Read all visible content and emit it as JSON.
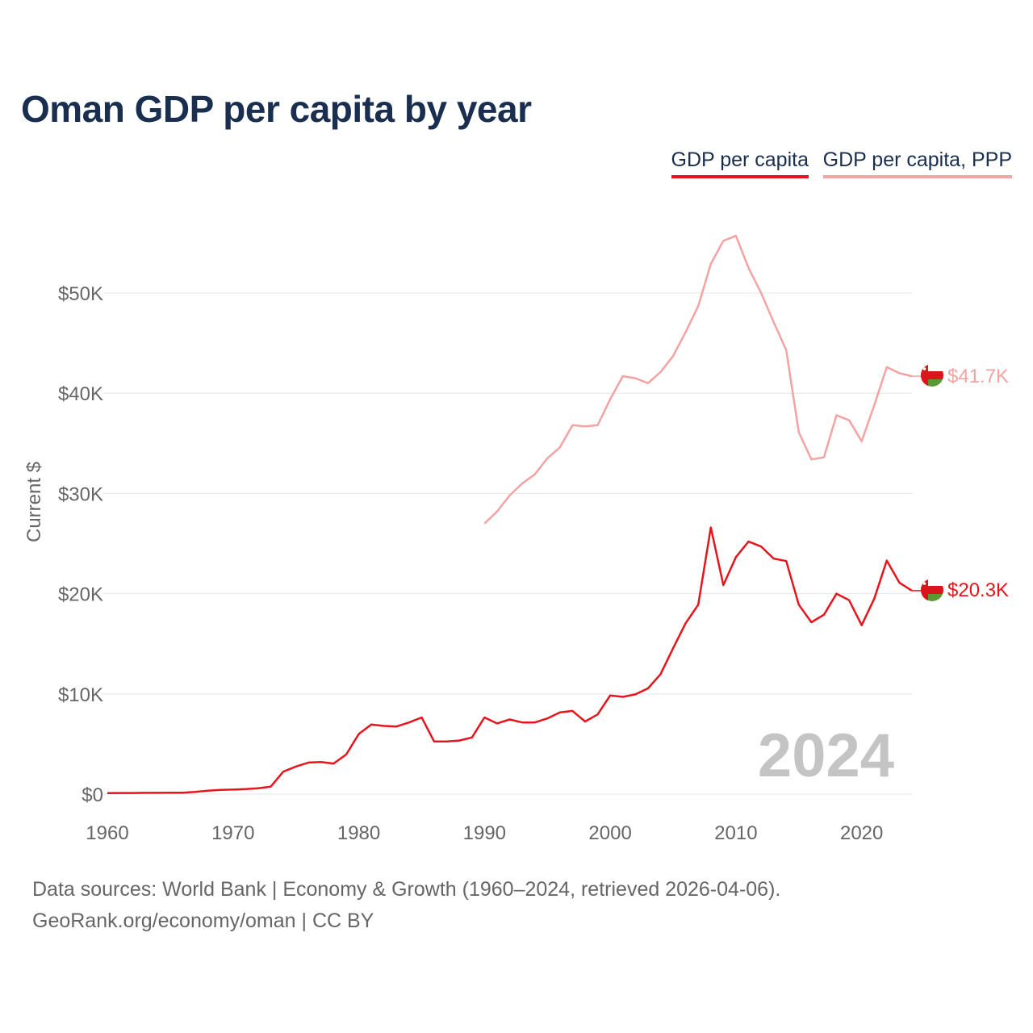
{
  "title": "Oman GDP per capita by year",
  "legend": {
    "gdp": "GDP per capita",
    "ppp": "GDP per capita, PPP"
  },
  "colors": {
    "gdp": "#e8141c",
    "ppp": "#f4a2a2",
    "grid": "#e6e6e6",
    "year_label": "#c4c4c4"
  },
  "year_label": "2024",
  "footer": {
    "source": "Data sources: World Bank | Economy & Growth (1960–2024, retrieved 2026-04-06).",
    "credit": "GeoRank.org/economy/oman | CC BY"
  },
  "end_labels": {
    "gdp": "$20.3K",
    "ppp": "$41.7K"
  },
  "chart_data": {
    "type": "line",
    "title": "Oman GDP per capita by year",
    "xlabel": "",
    "ylabel": "Current $",
    "xlim": [
      1960,
      2024
    ],
    "ylim": [
      0,
      55000
    ],
    "x_ticks": [
      1960,
      1970,
      1980,
      1990,
      2000,
      2010,
      2020
    ],
    "y_ticks": [
      {
        "value": 0,
        "label": "$0"
      },
      {
        "value": 10000,
        "label": "$10K"
      },
      {
        "value": 20000,
        "label": "$20K"
      },
      {
        "value": 30000,
        "label": "$30K"
      },
      {
        "value": 40000,
        "label": "$40K"
      },
      {
        "value": 50000,
        "label": "$50K"
      }
    ],
    "series": [
      {
        "name": "GDP per capita",
        "x": [
          1960,
          1961,
          1962,
          1963,
          1964,
          1965,
          1966,
          1967,
          1968,
          1969,
          1970,
          1971,
          1972,
          1973,
          1974,
          1975,
          1976,
          1977,
          1978,
          1979,
          1980,
          1981,
          1982,
          1983,
          1984,
          1985,
          1986,
          1987,
          1988,
          1989,
          1990,
          1991,
          1992,
          1993,
          1994,
          1995,
          1996,
          1997,
          1998,
          1999,
          2000,
          2001,
          2002,
          2003,
          2004,
          2005,
          2006,
          2007,
          2008,
          2009,
          2010,
          2011,
          2012,
          2013,
          2014,
          2015,
          2016,
          2017,
          2018,
          2019,
          2020,
          2021,
          2022,
          2023,
          2024
        ],
        "values": [
          100,
          110,
          115,
          125,
          130,
          135,
          140,
          220,
          350,
          420,
          450,
          500,
          580,
          750,
          2250,
          2750,
          3150,
          3200,
          3050,
          3950,
          6000,
          6950,
          6800,
          6750,
          7150,
          7650,
          5250,
          5250,
          5350,
          5650,
          7650,
          7050,
          7450,
          7150,
          7150,
          7550,
          8150,
          8300,
          7250,
          7950,
          9850,
          9700,
          9950,
          10550,
          11950,
          14550,
          17050,
          18900,
          26600,
          20850,
          23650,
          25200,
          24700,
          23500,
          23250,
          18900,
          17150,
          17900,
          20000,
          19350,
          16850,
          19500,
          23300,
          21100,
          20300
        ]
      },
      {
        "name": "GDP per capita, PPP",
        "x": [
          1990,
          1991,
          1992,
          1993,
          1994,
          1995,
          1996,
          1997,
          1998,
          1999,
          2000,
          2001,
          2002,
          2003,
          2004,
          2005,
          2006,
          2007,
          2008,
          2009,
          2010,
          2011,
          2012,
          2013,
          2014,
          2015,
          2016,
          2017,
          2018,
          2019,
          2020,
          2021,
          2022,
          2023,
          2024
        ],
        "values": [
          27000,
          28200,
          29800,
          31000,
          31900,
          33500,
          34600,
          36800,
          36700,
          36800,
          39400,
          41700,
          41500,
          41000,
          42100,
          43700,
          46100,
          48700,
          52900,
          55200,
          55700,
          52500,
          50000,
          47100,
          44300,
          36100,
          33400,
          33600,
          37800,
          37300,
          35200,
          38800,
          42600,
          42000,
          41700
        ]
      }
    ]
  }
}
